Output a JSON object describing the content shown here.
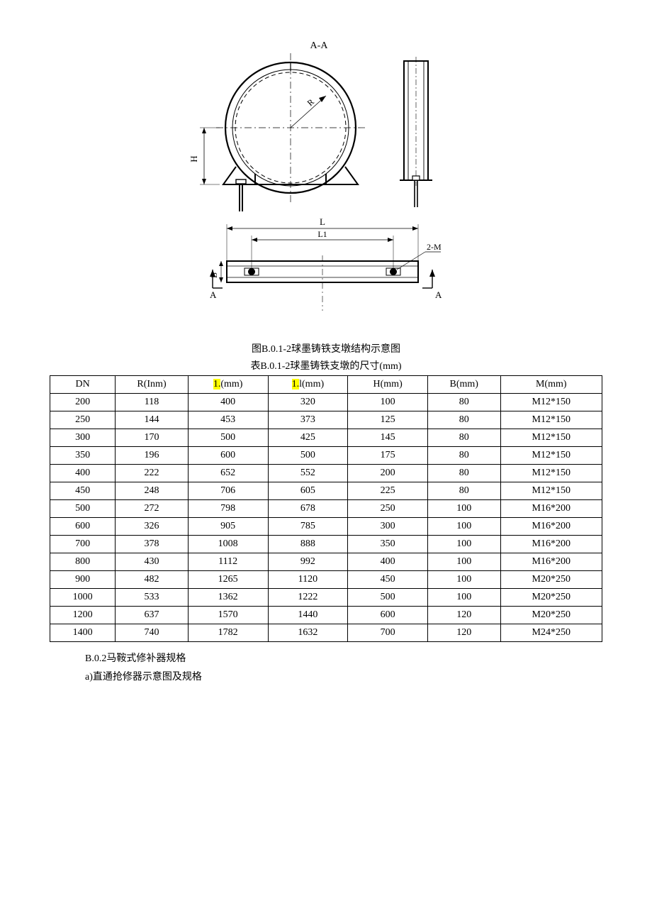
{
  "diagram": {
    "section_label": "A-A",
    "dims": {
      "R": "R",
      "H": "H",
      "L": "L",
      "L1": "L1",
      "B": "B",
      "AA_left": "A",
      "AA_right": "A",
      "bolt_label": "2-M"
    },
    "stroke": "#000000",
    "thin_stroke": "#000000",
    "bg": "#ffffff"
  },
  "captions": {
    "figure": "图B.0.1-2球墨铸铁支墩结构示意图",
    "table": "表B.0.1-2球墨铸铁支墩的尺寸(mm)"
  },
  "table": {
    "columns": [
      "DN",
      "R(Inm)",
      "1.(mm)",
      "1.l(mm)",
      "H(mm)",
      "B(mm)",
      "M(mm)"
    ],
    "highlight_cols": [
      2,
      3
    ],
    "highlight_text": "1.",
    "col_widths": [
      "90px",
      "100px",
      "110px",
      "110px",
      "110px",
      "100px",
      "140px"
    ],
    "rows": [
      [
        "200",
        "118",
        "400",
        "320",
        "100",
        "80",
        "M12*150"
      ],
      [
        "250",
        "144",
        "453",
        "373",
        "125",
        "80",
        "M12*150"
      ],
      [
        "300",
        "170",
        "500",
        "425",
        "145",
        "80",
        "M12*150"
      ],
      [
        "350",
        "196",
        "600",
        "500",
        "175",
        "80",
        "M12*150"
      ],
      [
        "400",
        "222",
        "652",
        "552",
        "200",
        "80",
        "M12*150"
      ],
      [
        "450",
        "248",
        "706",
        "605",
        "225",
        "80",
        "M12*150"
      ],
      [
        "500",
        "272",
        "798",
        "678",
        "250",
        "100",
        "M16*200"
      ],
      [
        "600",
        "326",
        "905",
        "785",
        "300",
        "100",
        "M16*200"
      ],
      [
        "700",
        "378",
        "1008",
        "888",
        "350",
        "100",
        "M16*200"
      ],
      [
        "800",
        "430",
        "1112",
        "992",
        "400",
        "100",
        "M16*200"
      ],
      [
        "900",
        "482",
        "1265",
        "1120",
        "450",
        "100",
        "M20*250"
      ],
      [
        "1000",
        "533",
        "1362",
        "1222",
        "500",
        "100",
        "M20*250"
      ],
      [
        "1200",
        "637",
        "1570",
        "1440",
        "600",
        "120",
        "M20*250"
      ],
      [
        "1400",
        "740",
        "1782",
        "1632",
        "700",
        "120",
        "M24*250"
      ]
    ]
  },
  "after": {
    "line1": "B.0.2马鞍式修补器规格",
    "line2": "a)直通抢修器示意图及规格"
  }
}
